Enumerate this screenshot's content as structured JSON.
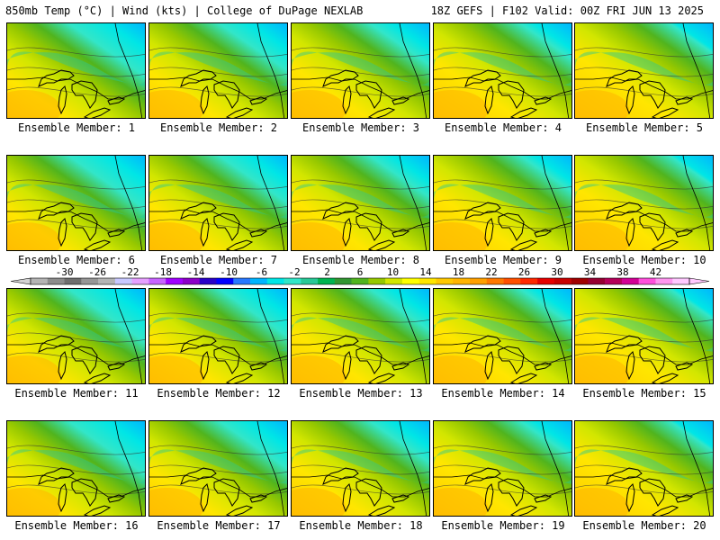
{
  "header": {
    "left": "850mb Temp (°C) | Wind (kts) | College of DuPage NEXLAB",
    "right": "18Z GEFS | F102 Valid: 00Z FRI JUN 13 2025"
  },
  "colorbar": {
    "labels": [
      "-30",
      "-26",
      "-22",
      "-18",
      "-14",
      "-10",
      "-6",
      "-2",
      "2",
      "6",
      "10",
      "14",
      "18",
      "22",
      "26",
      "30",
      "34",
      "38",
      "42"
    ],
    "colors": [
      "#b4b4b4",
      "#8c8c8c",
      "#6e6e6e",
      "#969696",
      "#b4b4b4",
      "#c8c8ff",
      "#e6a0ff",
      "#c864ff",
      "#a000ff",
      "#8c00c8",
      "#2800c8",
      "#0000ff",
      "#2878ff",
      "#00b4ff",
      "#00e6e6",
      "#32e6c8",
      "#28c896",
      "#00b450",
      "#329632",
      "#50b41e",
      "#96c800",
      "#d2e600",
      "#ffff00",
      "#ffe600",
      "#ffc800",
      "#ffb400",
      "#ffa000",
      "#ff7800",
      "#ff5000",
      "#ff2800",
      "#e60000",
      "#c80000",
      "#a00000",
      "#960032",
      "#b4005a",
      "#d20096",
      "#ff50dc",
      "#ff96f0",
      "#ffc8ff"
    ]
  },
  "members": [
    {
      "label": "Ensemble Member: 1"
    },
    {
      "label": "Ensemble Member: 2"
    },
    {
      "label": "Ensemble Member: 3"
    },
    {
      "label": "Ensemble Member: 4"
    },
    {
      "label": "Ensemble Member: 5"
    },
    {
      "label": "Ensemble Member: 6"
    },
    {
      "label": "Ensemble Member: 7"
    },
    {
      "label": "Ensemble Member: 8"
    },
    {
      "label": "Ensemble Member: 9"
    },
    {
      "label": "Ensemble Member: 10"
    },
    {
      "label": "Ensemble Member: 11"
    },
    {
      "label": "Ensemble Member: 12"
    },
    {
      "label": "Ensemble Member: 13"
    },
    {
      "label": "Ensemble Member: 14"
    },
    {
      "label": "Ensemble Member: 15"
    },
    {
      "label": "Ensemble Member: 16"
    },
    {
      "label": "Ensemble Member: 17"
    },
    {
      "label": "Ensemble Member: 18"
    },
    {
      "label": "Ensemble Member: 19"
    },
    {
      "label": "Ensemble Member: 20"
    }
  ]
}
